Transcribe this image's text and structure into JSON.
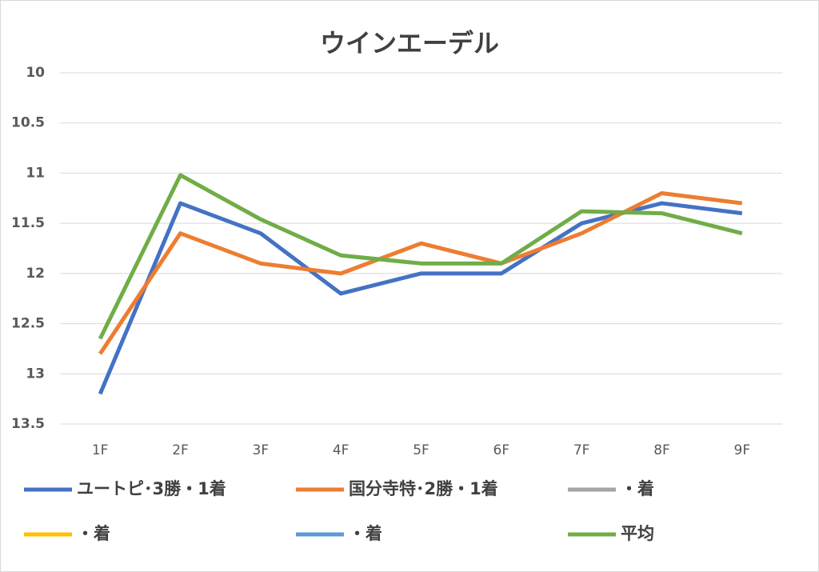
{
  "chart_data": {
    "type": "line",
    "title": "ウインエーデル",
    "categories": [
      "1F",
      "2F",
      "3F",
      "4F",
      "5F",
      "6F",
      "7F",
      "8F",
      "9F"
    ],
    "series": [
      {
        "name": "ユートピ･3勝・1着",
        "color": "#4472c4",
        "values": [
          13.2,
          11.3,
          11.6,
          12.2,
          12.0,
          12.0,
          11.5,
          11.3,
          11.4
        ]
      },
      {
        "name": "国分寺特･2勝・1着",
        "color": "#ed7d31",
        "values": [
          12.8,
          11.6,
          11.9,
          12.0,
          11.7,
          11.9,
          11.6,
          11.2,
          11.3
        ]
      },
      {
        "name": "・着",
        "color": "#a5a5a5",
        "values": [
          null,
          null,
          null,
          null,
          null,
          null,
          null,
          null,
          null
        ]
      },
      {
        "name": "・着",
        "color": "#ffc000",
        "values": [
          null,
          null,
          null,
          null,
          null,
          null,
          null,
          null,
          null
        ]
      },
      {
        "name": "・着",
        "color": "#5b9bd5",
        "values": [
          null,
          null,
          null,
          null,
          null,
          null,
          null,
          null,
          null
        ]
      },
      {
        "name": "平均",
        "color": "#70ad47",
        "values": [
          12.65,
          11.02,
          11.46,
          11.82,
          11.9,
          11.9,
          11.38,
          11.4,
          11.6
        ]
      }
    ],
    "ylim": [
      10,
      13.5
    ],
    "yticks": [
      10,
      10.5,
      11,
      11.5,
      12,
      12.5,
      13,
      13.5
    ],
    "y_inverted": true,
    "grid": true,
    "legend": "bottom"
  }
}
